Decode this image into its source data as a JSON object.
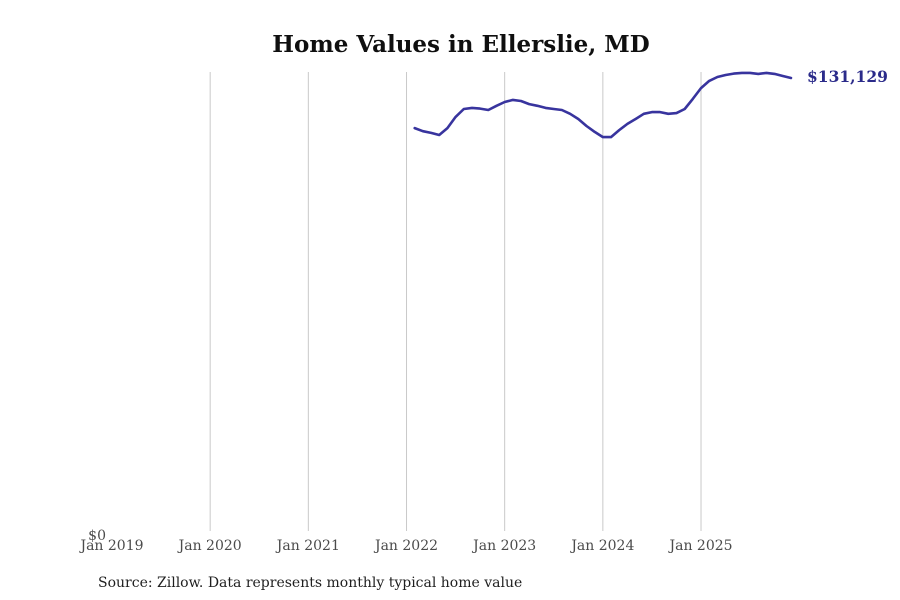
{
  "title": "Home Values in Ellerslie, MD",
  "source_note": "Source: Zillow. Data represents monthly typical home value",
  "latest_value_label": "$131,129",
  "y_axis": {
    "zero_label": "$0",
    "min": 0
  },
  "colors": {
    "line": "#38349e",
    "latest_label": "#2b2b8a",
    "grid": "#c9c9c9",
    "axis_text": "#4b4b4b",
    "title_text": "#0f0f0f",
    "source_text": "#1f1f1f"
  },
  "chart_data": {
    "type": "line",
    "title": "Home Values in Ellerslie, MD",
    "legend": "none",
    "grid": "vertical-only",
    "x_axis": {
      "ticks": [
        {
          "label": "Jan 2019",
          "month": "2019-01",
          "gridline": false
        },
        {
          "label": "Jan 2020",
          "month": "2020-01",
          "gridline": true
        },
        {
          "label": "Jan 2021",
          "month": "2021-01",
          "gridline": true
        },
        {
          "label": "Jan 2022",
          "month": "2022-01",
          "gridline": true
        },
        {
          "label": "Jan 2023",
          "month": "2023-01",
          "gridline": true
        },
        {
          "label": "Jan 2024",
          "month": "2024-01",
          "gridline": true
        },
        {
          "label": "Jan 2025",
          "month": "2025-01",
          "gridline": true
        }
      ]
    },
    "y_axis": {
      "min": 0,
      "max_est": 133000,
      "zero_label": "$0"
    },
    "series": [
      {
        "name": "Monthly typical home value (USD)",
        "months": [
          "2022-02",
          "2022-03",
          "2022-04",
          "2022-05",
          "2022-06",
          "2022-07",
          "2022-08",
          "2022-09",
          "2022-10",
          "2022-11",
          "2022-12",
          "2023-01",
          "2023-02",
          "2023-03",
          "2023-04",
          "2023-05",
          "2023-06",
          "2023-07",
          "2023-08",
          "2023-09",
          "2023-10",
          "2023-11",
          "2023-12",
          "2024-01",
          "2024-02",
          "2024-03",
          "2024-04",
          "2024-05",
          "2024-06",
          "2024-07",
          "2024-08",
          "2024-09",
          "2024-10",
          "2024-11",
          "2024-12",
          "2025-01",
          "2025-02",
          "2025-03",
          "2025-04",
          "2025-05",
          "2025-06",
          "2025-07",
          "2025-08",
          "2025-09",
          "2025-10",
          "2025-11",
          "2025-12"
        ],
        "values": [
          116700,
          115800,
          115300,
          114700,
          116700,
          119900,
          122200,
          122500,
          122300,
          121900,
          123100,
          124200,
          124800,
          124500,
          123600,
          123100,
          122500,
          122200,
          121900,
          120800,
          119300,
          117300,
          115600,
          114100,
          114100,
          116100,
          117900,
          119300,
          120800,
          121300,
          121300,
          120800,
          121000,
          122200,
          125100,
          128200,
          130300,
          131400,
          132000,
          132400,
          132600,
          132600,
          132300,
          132600,
          132300,
          131700,
          131129
        ]
      }
    ],
    "latest": {
      "month": "2025-12",
      "value": 131129,
      "label": "$131,129"
    }
  }
}
